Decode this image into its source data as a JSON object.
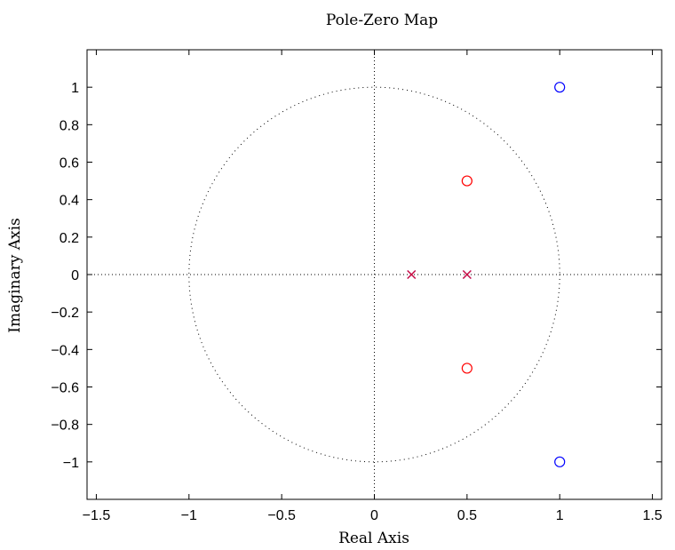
{
  "chart_data": {
    "type": "scatter",
    "title": "Pole-Zero Map",
    "xlabel": "Real Axis",
    "ylabel": "Imaginary Axis",
    "xlim": [
      -1.55,
      1.55
    ],
    "ylim": [
      -1.2,
      1.2
    ],
    "xticks": [
      -1.5,
      -1,
      -0.5,
      0,
      0.5,
      1,
      1.5
    ],
    "xtick_labels": [
      "−1.5",
      "−1",
      "−0.5",
      "0",
      "0.5",
      "1",
      "1.5"
    ],
    "yticks": [
      1,
      0.8,
      0.6,
      0.4,
      0.2,
      0,
      -0.2,
      -0.4,
      -0.6,
      -0.8,
      -1
    ],
    "ytick_labels": [
      "1",
      "0.8",
      "0.6",
      "0.4",
      "0.2",
      "0",
      "−0.2",
      "−0.4",
      "−0.6",
      "−0.8",
      "−1"
    ],
    "grid": false,
    "unit_circle": true,
    "series": [
      {
        "marker": "circle",
        "color": "#0000ff",
        "points": [
          {
            "x": 1,
            "y": 1
          },
          {
            "x": 1,
            "y": -1
          }
        ]
      },
      {
        "marker": "circle",
        "color": "#ff0000",
        "points": [
          {
            "x": 0.5,
            "y": 0.5
          },
          {
            "x": 0.5,
            "y": -0.5
          }
        ]
      },
      {
        "marker": "x",
        "color": "#0000ff",
        "points": [
          {
            "x": 0.2,
            "y": 0
          },
          {
            "x": 0.5,
            "y": 0
          }
        ]
      },
      {
        "marker": "x",
        "color": "#ff0000",
        "points": [
          {
            "x": 0.2,
            "y": 0
          },
          {
            "x": 0.5,
            "y": 0
          }
        ]
      }
    ]
  }
}
